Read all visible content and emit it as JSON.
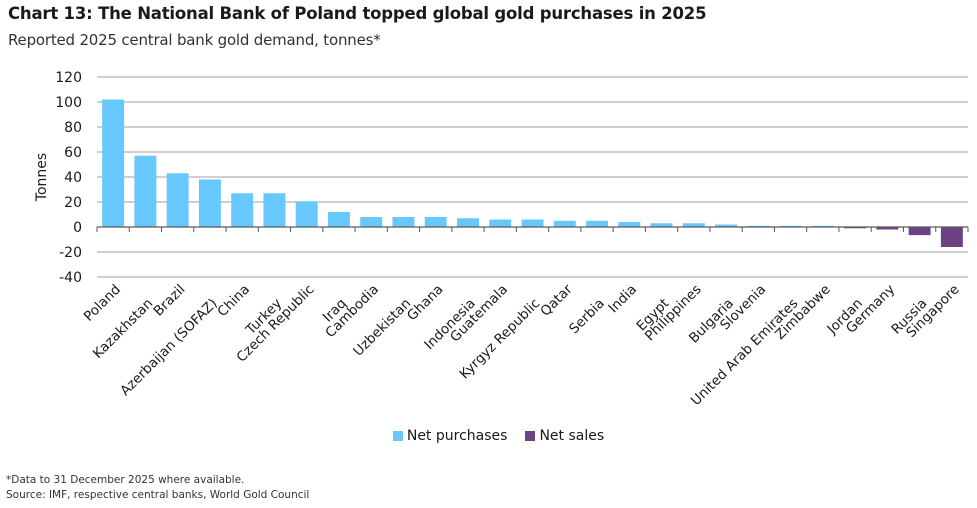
{
  "header": {
    "title": "Chart 13: The National Bank of Poland topped global gold purchases in 2025",
    "subtitle": "Reported 2025 central bank gold demand, tonnes*"
  },
  "footer": {
    "note": "*Data to 31 December 2025 where available.",
    "source": "Source: IMF, respective central banks, World Gold Council"
  },
  "colors": {
    "net_purchases": "#66c8fc",
    "net_sales": "#6c4283",
    "grid": "#bfbfbf",
    "axis": "#595959"
  },
  "chart_data": {
    "type": "bar",
    "title": "Chart 13: The National Bank of Poland topped global gold purchases in 2025",
    "subtitle": "Reported 2025 central bank gold demand, tonnes*",
    "xlabel": "",
    "ylabel": "Tonnes",
    "ylim": [
      -40,
      120
    ],
    "yticks": [
      -40,
      -20,
      0,
      20,
      40,
      60,
      80,
      100,
      120
    ],
    "grid": true,
    "legend": {
      "position": "bottom",
      "entries": [
        {
          "label": "Net purchases",
          "color_key": "net_purchases"
        },
        {
          "label": "Net sales",
          "color_key": "net_sales"
        }
      ]
    },
    "categories": [
      "Poland",
      "Kazakhstan",
      "Brazil",
      "Azerbaijan (SOFAZ)",
      "China",
      "Turkey",
      "Czech Republic",
      "Iraq",
      "Cambodia",
      "Uzbekistan",
      "Ghana",
      "Indonesia",
      "Guatemala",
      "Kyrgyz Republic",
      "Qatar",
      "Serbia",
      "India",
      "Egypt",
      "Philippines",
      "Bulgaria",
      "Slovenia",
      "United Arab Emirates",
      "Zimbabwe",
      "Jordan",
      "Germany",
      "Russia",
      "Singapore"
    ],
    "values": [
      102,
      57,
      43,
      38,
      27,
      27,
      20.5,
      12,
      8,
      8,
      8,
      7,
      6,
      6,
      5,
      5,
      4,
      3,
      3,
      2,
      1,
      1,
      1,
      -1,
      -2,
      -6.5,
      -16
    ]
  }
}
